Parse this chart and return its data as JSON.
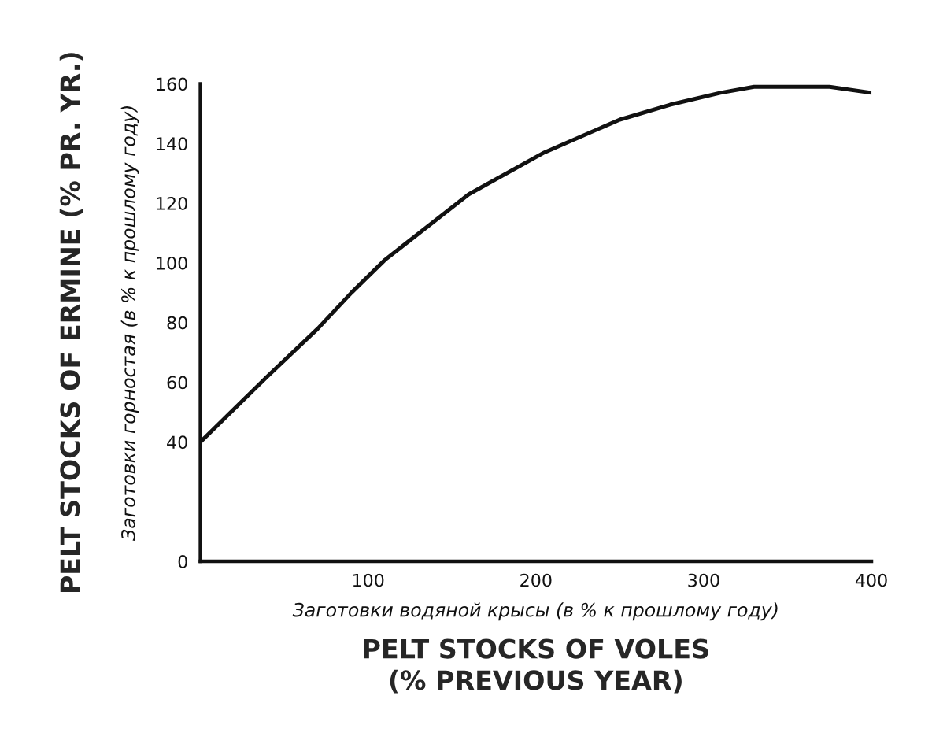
{
  "chart_data": {
    "type": "line",
    "xlabel": "PELT STOCKS OF VOLES\n(% PREVIOUS YEAR)",
    "ylabel": "PELT STOCKS OF ERMINE (% PR. YR.)",
    "annotations": [
      "Заготовки водяной крысы (в % к прошлому году)",
      "Заготовки горностая (в % к прошлому году)"
    ],
    "series": [
      {
        "color": "#111111",
        "x": [
          0,
          40,
          70,
          90,
          110,
          160,
          205,
          250,
          280,
          310,
          330,
          375,
          400
        ],
        "values": [
          40,
          62,
          78,
          90,
          101,
          123,
          137,
          148,
          153,
          157,
          159,
          159,
          157
        ]
      }
    ],
    "xlim": [
      0,
      400
    ],
    "xticks": [
      100,
      200,
      300,
      400
    ],
    "ylim": [
      0,
      160
    ],
    "yticks": [
      0,
      40,
      60,
      80,
      100,
      120,
      140,
      160
    ],
    "grid": false,
    "line_style": "solid",
    "marker": "none"
  }
}
